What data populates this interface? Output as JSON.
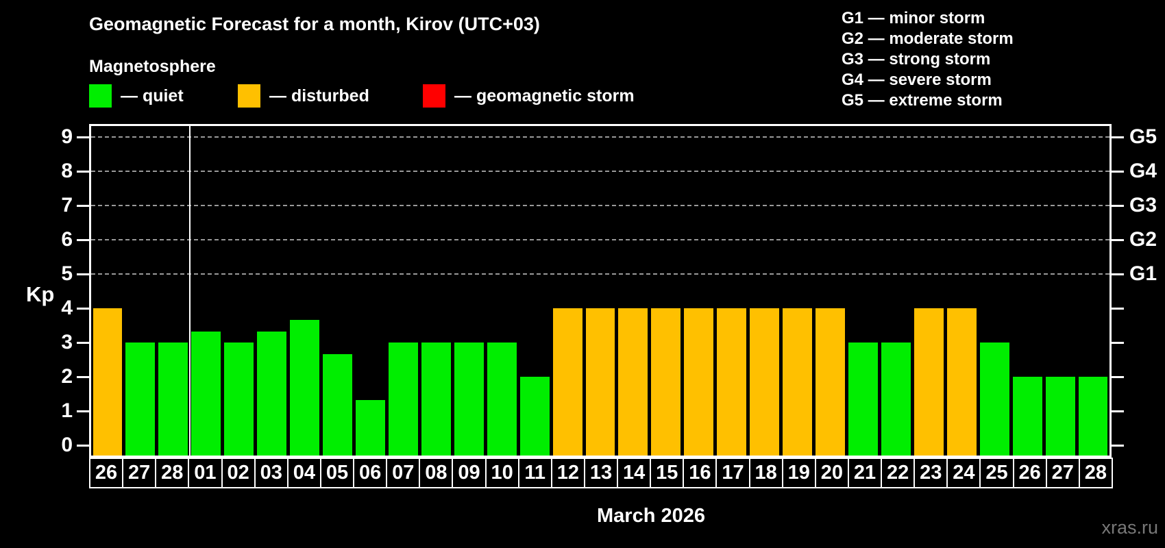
{
  "title": "Geomagnetic Forecast for a month, Kirov (UTC+03)",
  "subtitle": "Magnetosphere",
  "legend": {
    "quiet": {
      "label": "— quiet",
      "color": "#00ee00"
    },
    "disturbed": {
      "label": "— disturbed",
      "color": "#ffc000"
    },
    "storm": {
      "label": "— geomagnetic storm",
      "color": "#ff0000"
    }
  },
  "g_legend": [
    {
      "text": "G1 — minor storm"
    },
    {
      "text": "G2 — moderate storm"
    },
    {
      "text": "G3 — strong storm"
    },
    {
      "text": "G4 — severe storm"
    },
    {
      "text": "G5 — extreme storm"
    }
  ],
  "axis": {
    "y_label": "Kp",
    "y_ticks": [
      0,
      1,
      2,
      3,
      4,
      5,
      6,
      7,
      8,
      9
    ],
    "g_ticks": [
      {
        "label": "G1",
        "kp": 5
      },
      {
        "label": "G2",
        "kp": 6
      },
      {
        "label": "G3",
        "kp": 7
      },
      {
        "label": "G4",
        "kp": 8
      },
      {
        "label": "G5",
        "kp": 9
      }
    ]
  },
  "footer": {
    "month_label": "March 2026",
    "watermark": "xras.ru"
  },
  "chart_data": {
    "type": "bar",
    "title": "Geomagnetic Forecast for a month, Kirov (UTC+03)",
    "ylabel": "Kp",
    "ylim": [
      0,
      9.4
    ],
    "grid_levels": [
      5,
      6,
      7,
      8,
      9
    ],
    "legend_position": "top-left",
    "month_separator_after_index": 2,
    "categories": [
      "26",
      "27",
      "28",
      "01",
      "02",
      "03",
      "04",
      "05",
      "06",
      "07",
      "08",
      "09",
      "10",
      "11",
      "12",
      "13",
      "14",
      "15",
      "16",
      "17",
      "18",
      "19",
      "20",
      "21",
      "22",
      "23",
      "24",
      "25",
      "26",
      "27",
      "28"
    ],
    "values": [
      4,
      3,
      3,
      3.33,
      3,
      3.33,
      3.67,
      2.67,
      1.33,
      3,
      3,
      3,
      3,
      2,
      4,
      4,
      4,
      4,
      4,
      4,
      4,
      4,
      4,
      3,
      3,
      4,
      4,
      3,
      2,
      2,
      2
    ],
    "statuses": [
      "disturbed",
      "quiet",
      "quiet",
      "quiet",
      "quiet",
      "quiet",
      "quiet",
      "quiet",
      "quiet",
      "quiet",
      "quiet",
      "quiet",
      "quiet",
      "quiet",
      "disturbed",
      "disturbed",
      "disturbed",
      "disturbed",
      "disturbed",
      "disturbed",
      "disturbed",
      "disturbed",
      "disturbed",
      "quiet",
      "quiet",
      "disturbed",
      "disturbed",
      "quiet",
      "quiet",
      "quiet",
      "quiet"
    ],
    "colors": {
      "quiet": "#00ee00",
      "disturbed": "#ffc000",
      "storm": "#ff0000"
    }
  }
}
